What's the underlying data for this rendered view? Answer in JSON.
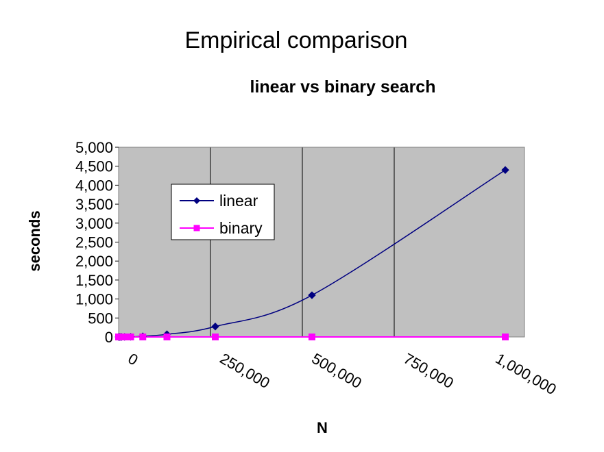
{
  "title": "Empirical comparison",
  "colors": {
    "plot_background": "#c0c0c0",
    "linear": "#000080",
    "binary": "#ff00ff",
    "gridline": "#000000"
  },
  "chart_data": {
    "type": "line",
    "title": "linear vs binary search",
    "xlabel": "N",
    "ylabel": "seconds",
    "xlim": [
      0,
      1048576
    ],
    "ylim": [
      0,
      5000
    ],
    "x_ticks": [
      0,
      250000,
      500000,
      750000,
      1000000
    ],
    "x_tick_labels": [
      "0",
      "250,000",
      "500,000",
      "750,000",
      "1,000,000"
    ],
    "y_ticks": [
      0,
      500,
      1000,
      1500,
      2000,
      2500,
      3000,
      3500,
      4000,
      4500,
      5000
    ],
    "y_tick_labels": [
      "0",
      "500",
      "1,000",
      "1,500",
      "2,000",
      "2,500",
      "3,000",
      "3,500",
      "4,000",
      "4,500",
      "5,000"
    ],
    "grid": true,
    "legend_position": "upper-left",
    "series": [
      {
        "name": "linear",
        "marker": "diamond",
        "color": "#000080",
        "x": [
          1024,
          2048,
          4096,
          8192,
          16384,
          32768,
          65536,
          131072,
          262144,
          524288,
          1048576
        ],
        "y": [
          0,
          0,
          0,
          0,
          1,
          4,
          17,
          70,
          275,
          1100,
          4400
        ]
      },
      {
        "name": "binary",
        "marker": "square",
        "color": "#ff00ff",
        "x": [
          1024,
          2048,
          4096,
          8192,
          16384,
          32768,
          65536,
          131072,
          262144,
          524288,
          1048576
        ],
        "y": [
          0,
          0,
          0,
          0,
          0,
          0,
          0,
          0,
          0,
          0,
          0
        ]
      }
    ]
  }
}
